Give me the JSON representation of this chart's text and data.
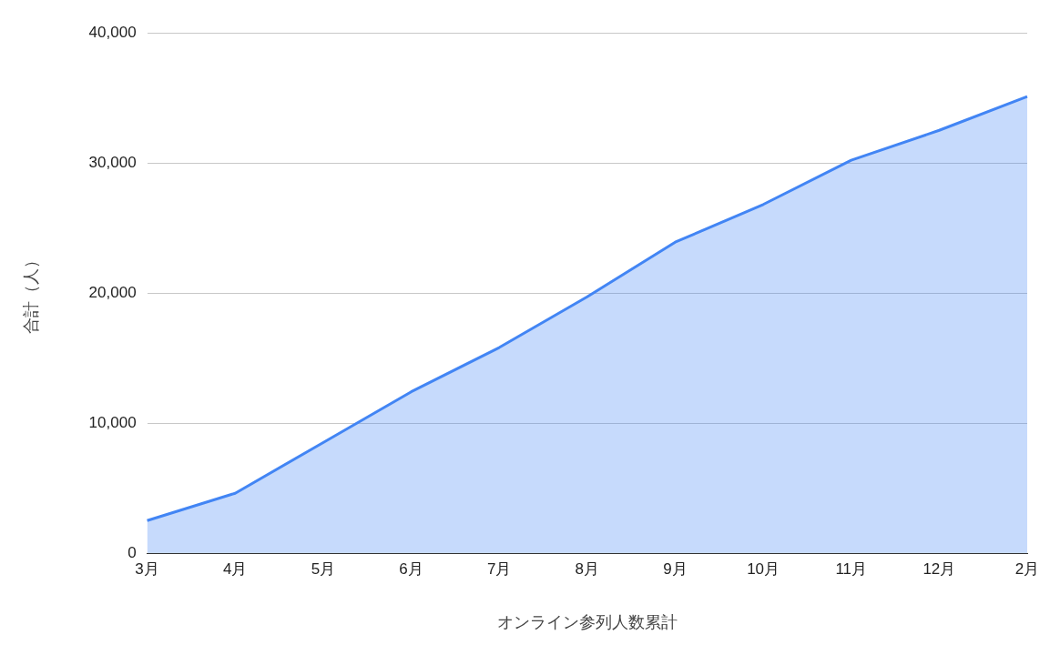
{
  "chart_data": {
    "type": "area",
    "xlabel": "オンライン参列人数累計",
    "ylabel": "合計（人）",
    "categories": [
      "3月",
      "4月",
      "5月",
      "6月",
      "7月",
      "8月",
      "9月",
      "10月",
      "11月",
      "12月",
      "2月"
    ],
    "series": [
      {
        "color": "#4285f4",
        "values": [
          2500,
          4600,
          8500,
          12400,
          15800,
          19700,
          23900,
          26800,
          30200,
          32500,
          35100
        ]
      }
    ],
    "ylim": [
      0,
      40000
    ],
    "yticks": [
      {
        "value": 0,
        "label": "0"
      },
      {
        "value": 10000,
        "label": "10,000"
      },
      {
        "value": 20000,
        "label": "20,000"
      },
      {
        "value": 30000,
        "label": "30,000"
      },
      {
        "value": 40000,
        "label": "40,000"
      }
    ],
    "grid": "y",
    "legend": false,
    "marker": "none",
    "line_style": "solid"
  }
}
